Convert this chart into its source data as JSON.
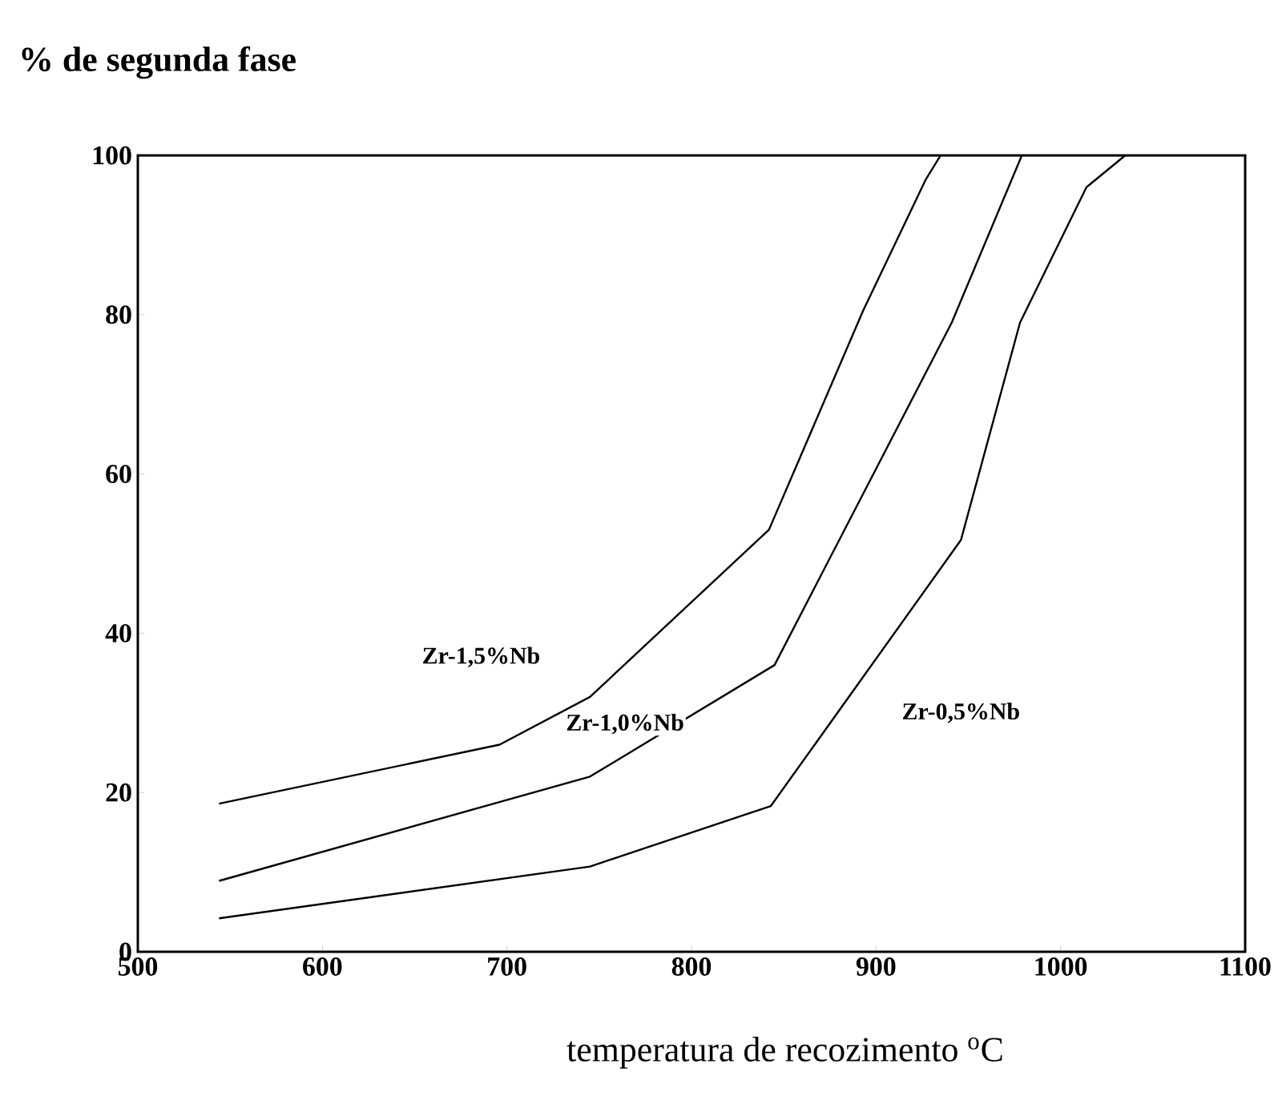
{
  "chart_data": {
    "type": "line",
    "xlabel": "temperatura de recozimento   $^{o}$C",
    "ylabel": "% de segunda fase",
    "xlim": [
      500,
      1100
    ],
    "ylim": [
      0,
      100
    ],
    "xticks": [
      500,
      600,
      700,
      800,
      900,
      1000,
      1100
    ],
    "yticks": [
      0,
      20,
      40,
      60,
      80,
      100
    ],
    "marker": "none",
    "line_style": "solid",
    "grid": false,
    "series": [
      {
        "name": "Zr-1,5%Nb",
        "color": "#000000",
        "x": [
          544,
          696,
          745,
          842,
          893,
          927,
          935
        ],
        "values": [
          18.6,
          26,
          32,
          53,
          80.5,
          97,
          100
        ]
      },
      {
        "name": "Zr-1,0%Nb",
        "color": "#000000",
        "x": [
          544,
          745,
          845,
          941,
          979
        ],
        "values": [
          8.9,
          22,
          36,
          79,
          100
        ]
      },
      {
        "name": "Zr-0,5%Nb",
        "color": "#000000",
        "x": [
          544,
          745,
          843,
          946,
          978,
          1014,
          1035
        ],
        "values": [
          4.2,
          10.7,
          18.3,
          51.7,
          79,
          96,
          100
        ]
      }
    ]
  }
}
